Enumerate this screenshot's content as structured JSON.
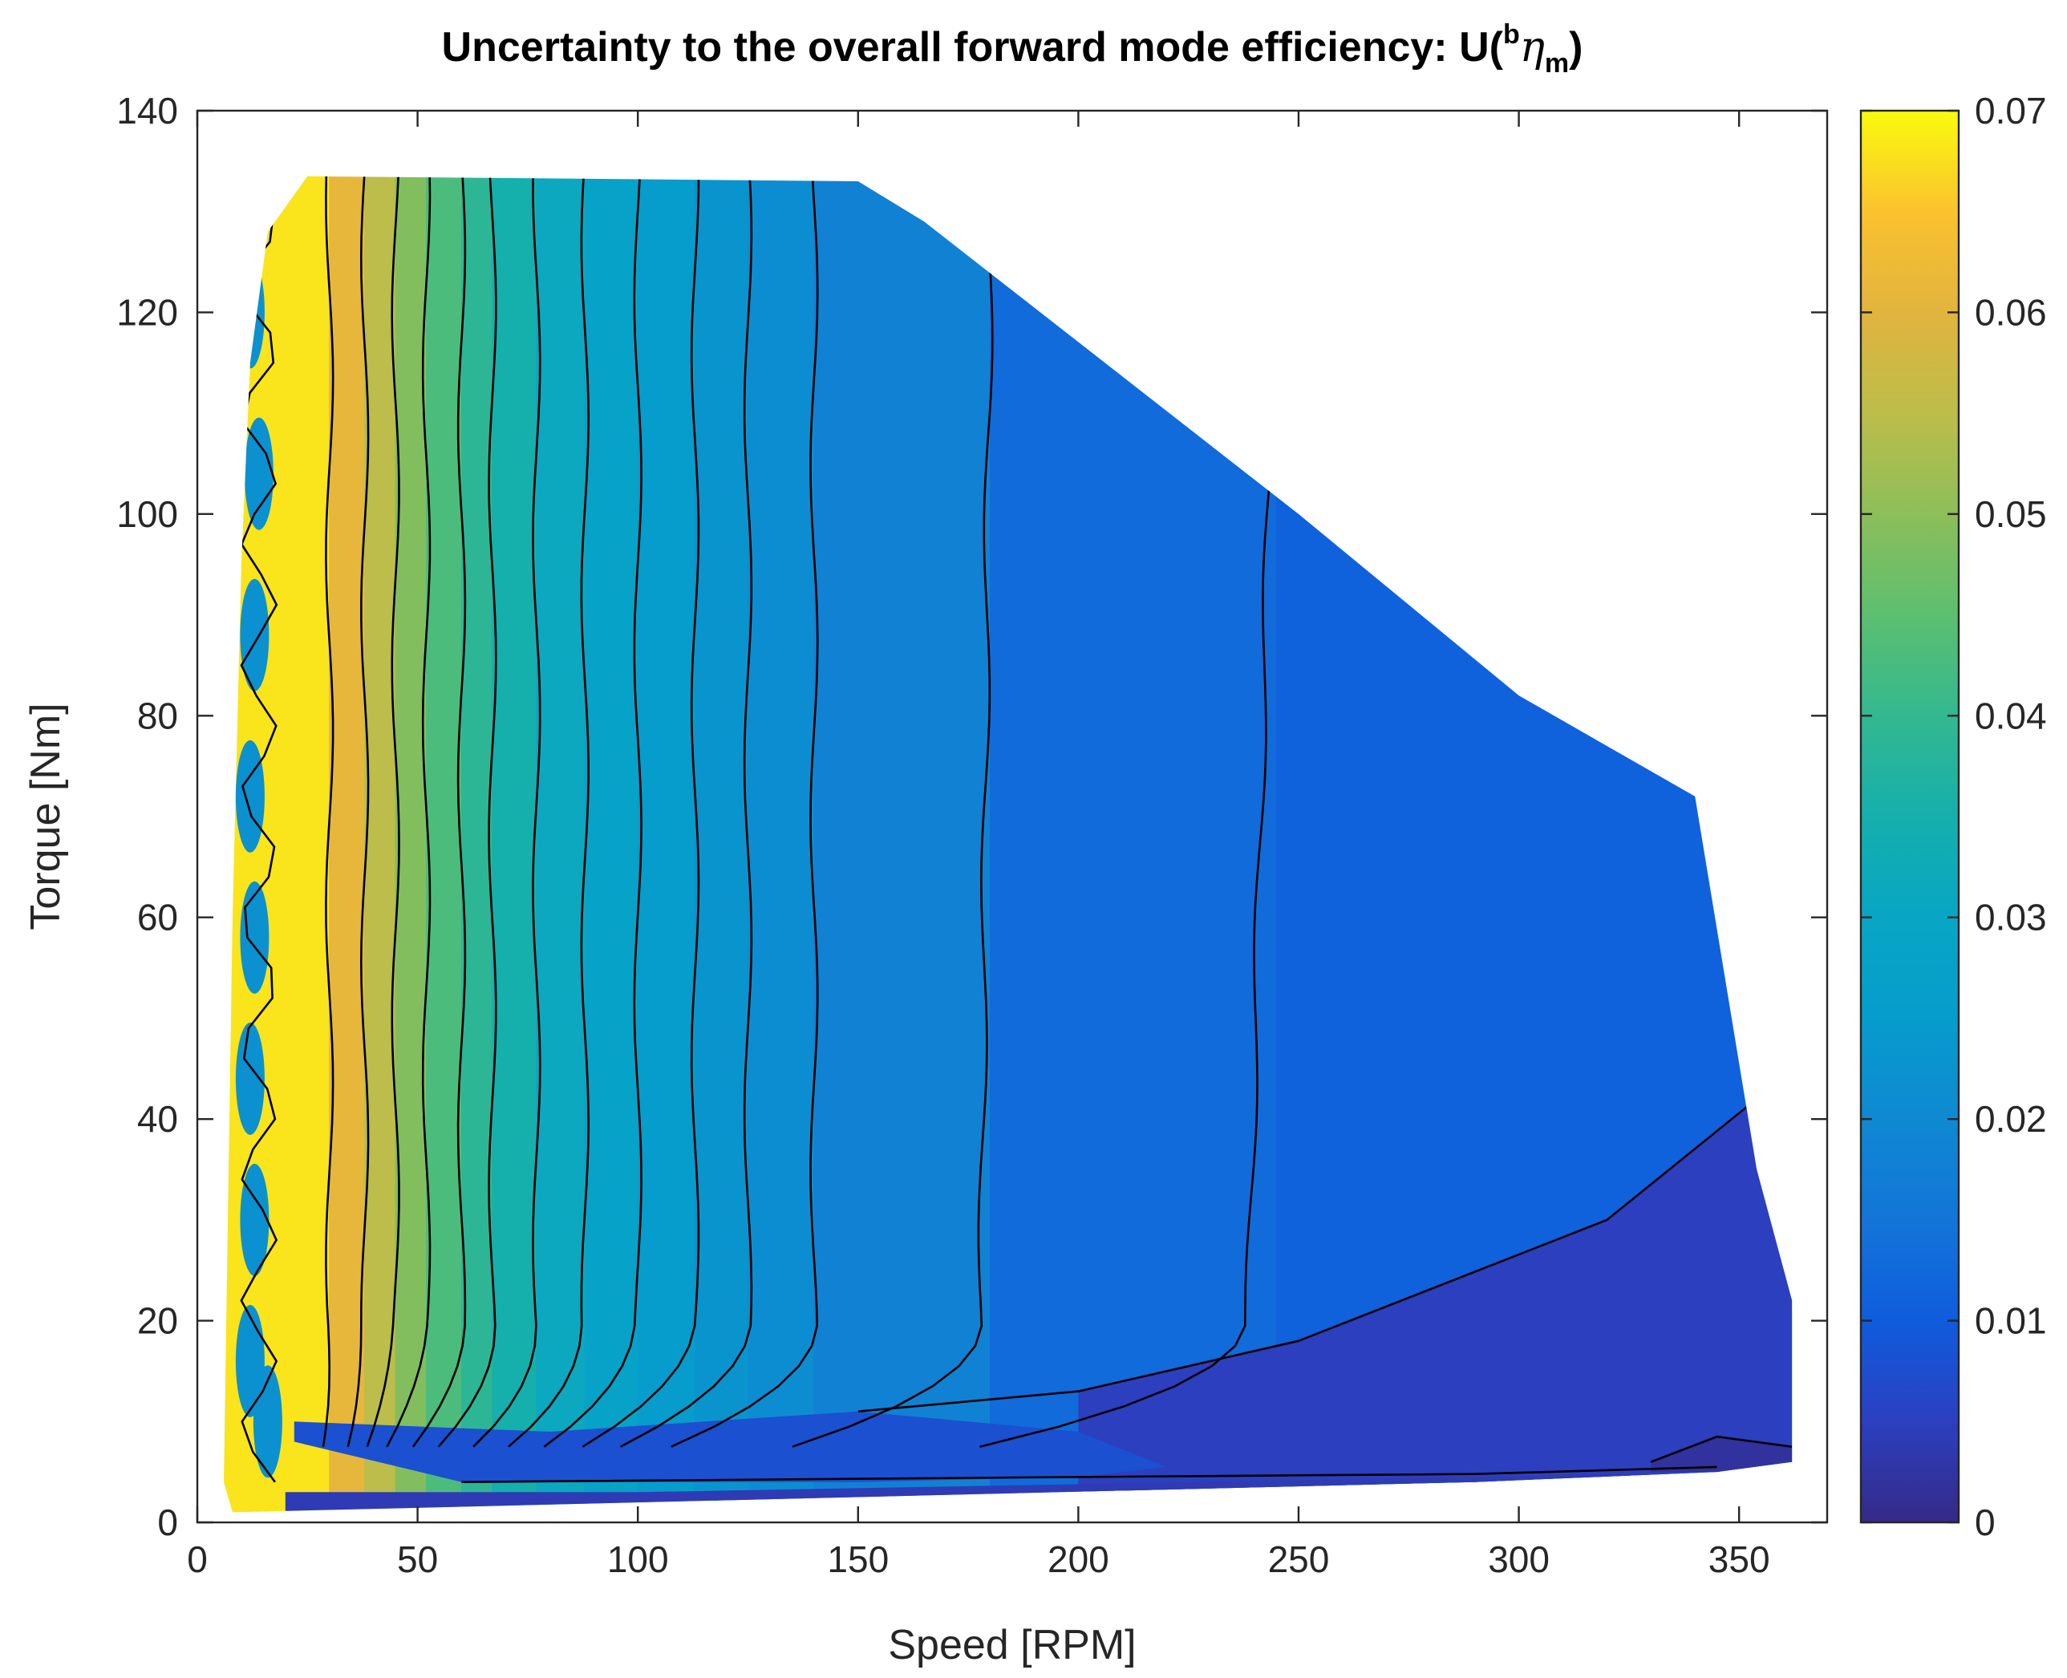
{
  "chart_data": {
    "type": "contourf",
    "title": "Uncertainty to the overall forward mode efficiency: U(",
    "title_sup": "b",
    "title_eta": "η",
    "title_sub": "m",
    "title_close": ")",
    "xlabel": "Speed [RPM]",
    "ylabel": "Torque [Nm]",
    "xlim": [
      0,
      370
    ],
    "ylim": [
      0,
      140
    ],
    "xticks": [
      0,
      50,
      100,
      150,
      200,
      250,
      300,
      350
    ],
    "yticks": [
      0,
      20,
      40,
      60,
      80,
      100,
      120,
      140
    ],
    "xtick_labels": [
      "0",
      "50",
      "100",
      "150",
      "200",
      "250",
      "300",
      "350"
    ],
    "ytick_labels": [
      "0",
      "20",
      "40",
      "60",
      "80",
      "100",
      "120",
      "140"
    ],
    "colorbar": {
      "range": [
        0,
        0.07
      ],
      "ticks": [
        0,
        0.01,
        0.02,
        0.03,
        0.04,
        0.05,
        0.06,
        0.07
      ],
      "tick_labels": [
        "0",
        "0.01",
        "0.02",
        "0.03",
        "0.04",
        "0.05",
        "0.06",
        "0.07"
      ],
      "colormap": "parula"
    },
    "operating_envelope": [
      [
        6,
        4
      ],
      [
        8,
        60
      ],
      [
        10,
        95
      ],
      [
        12,
        115
      ],
      [
        16,
        128
      ],
      [
        25,
        133.5
      ],
      [
        150,
        133
      ],
      [
        165,
        129
      ],
      [
        250,
        100
      ],
      [
        300,
        82
      ],
      [
        340,
        72
      ],
      [
        354,
        35
      ],
      [
        362,
        22
      ],
      [
        362,
        6
      ],
      [
        345,
        5
      ],
      [
        290,
        4
      ],
      [
        8,
        1
      ]
    ],
    "speed_bands": [
      {
        "x_max": 30,
        "value": 0.068
      },
      {
        "x_max": 38,
        "value": 0.061
      },
      {
        "x_max": 45,
        "value": 0.055
      },
      {
        "x_max": 52,
        "value": 0.049
      },
      {
        "x_max": 60,
        "value": 0.043
      },
      {
        "x_max": 67,
        "value": 0.039
      },
      {
        "x_max": 77,
        "value": 0.035
      },
      {
        "x_max": 88,
        "value": 0.031
      },
      {
        "x_max": 100,
        "value": 0.028
      },
      {
        "x_max": 113,
        "value": 0.025
      },
      {
        "x_max": 125,
        "value": 0.023
      },
      {
        "x_max": 140,
        "value": 0.021
      },
      {
        "x_max": 180,
        "value": 0.018
      },
      {
        "x_max": 245,
        "value": 0.013
      },
      {
        "x_max": 362,
        "value": 0.011
      }
    ],
    "low_torque_region": {
      "value": 0.005,
      "boundary": [
        [
          200,
          13
        ],
        [
          250,
          18
        ],
        [
          320,
          30
        ],
        [
          354,
          42
        ]
      ]
    },
    "lowest_region": {
      "value": 0.002,
      "boundary": [
        [
          330,
          6
        ],
        [
          345,
          8.5
        ],
        [
          362,
          7.5
        ]
      ]
    },
    "contour_speeds": [
      30,
      38,
      45,
      52,
      60,
      67,
      77,
      88,
      100,
      113,
      125,
      140,
      180,
      245
    ]
  }
}
